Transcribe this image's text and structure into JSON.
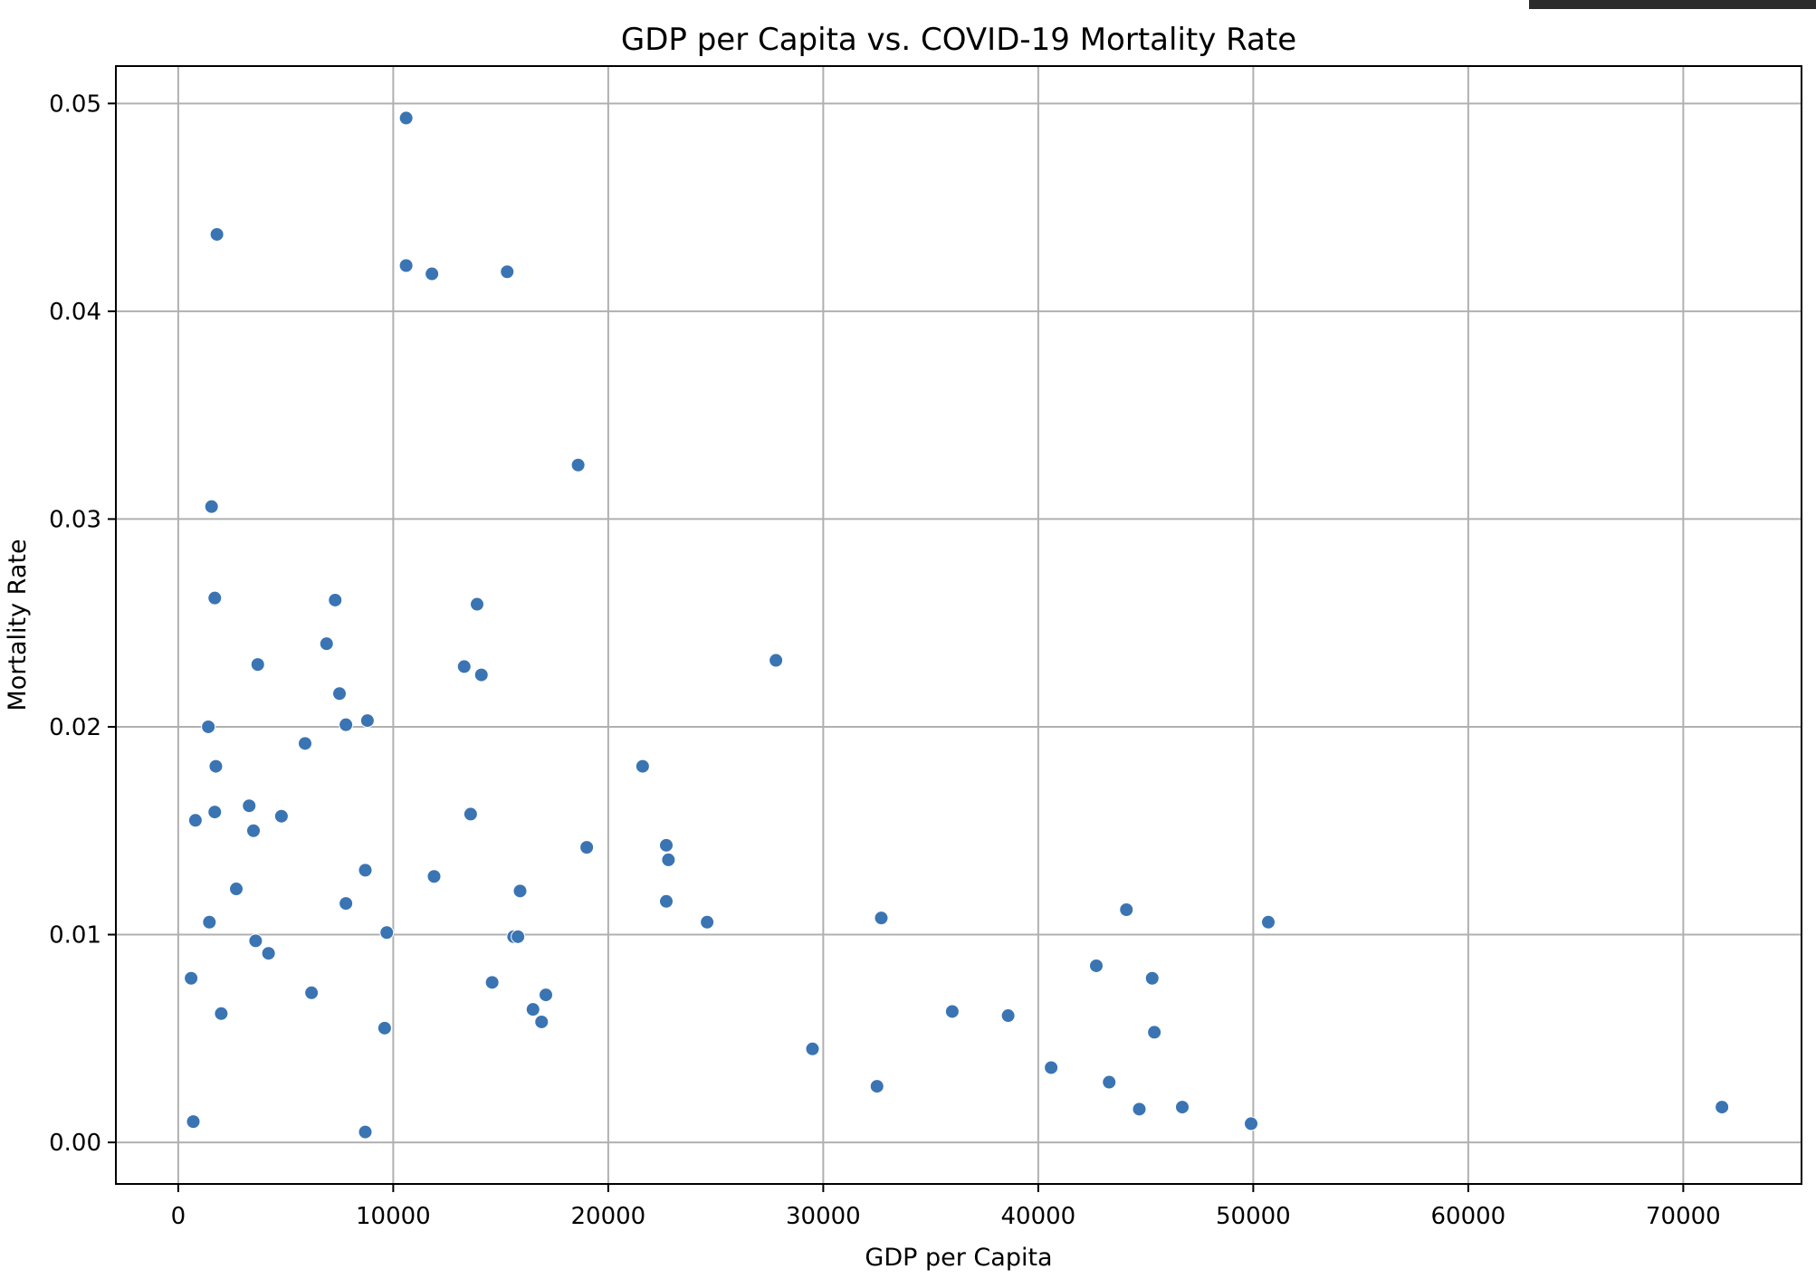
{
  "chart_data": {
    "type": "scatter",
    "title": "GDP per Capita vs. COVID-19 Mortality Rate",
    "xlabel": "GDP per Capita",
    "ylabel": "Mortality Rate",
    "xlim": [
      -2900,
      75500
    ],
    "ylim": [
      -0.002,
      0.0518
    ],
    "xticks": [
      0,
      10000,
      20000,
      30000,
      40000,
      50000,
      60000,
      70000
    ],
    "xtick_labels": [
      "0",
      "10000",
      "20000",
      "30000",
      "40000",
      "50000",
      "60000",
      "70000"
    ],
    "yticks": [
      0.0,
      0.01,
      0.02,
      0.03,
      0.04,
      0.05
    ],
    "ytick_labels": [
      "0.00",
      "0.01",
      "0.02",
      "0.03",
      "0.04",
      "0.05"
    ],
    "grid": true,
    "marker_color": "#3a74b3",
    "points": [
      [
        10600,
        0.0493
      ],
      [
        1800,
        0.0437
      ],
      [
        10600,
        0.0422
      ],
      [
        11800,
        0.0418
      ],
      [
        15300,
        0.0419
      ],
      [
        18600,
        0.0326
      ],
      [
        1550,
        0.0306
      ],
      [
        1700,
        0.0262
      ],
      [
        7300,
        0.0261
      ],
      [
        13900,
        0.0259
      ],
      [
        6900,
        0.024
      ],
      [
        27800,
        0.0232
      ],
      [
        3700,
        0.023
      ],
      [
        13300,
        0.0229
      ],
      [
        14100,
        0.0225
      ],
      [
        7500,
        0.0216
      ],
      [
        1400,
        0.02
      ],
      [
        7800,
        0.0201
      ],
      [
        8800,
        0.0203
      ],
      [
        5900,
        0.0192
      ],
      [
        1750,
        0.0181
      ],
      [
        21600,
        0.0181
      ],
      [
        3300,
        0.0162
      ],
      [
        1700,
        0.0159
      ],
      [
        4800,
        0.0157
      ],
      [
        800,
        0.0155
      ],
      [
        13600,
        0.0158
      ],
      [
        3500,
        0.015
      ],
      [
        22700,
        0.0143
      ],
      [
        19000,
        0.0142
      ],
      [
        22800,
        0.0136
      ],
      [
        8700,
        0.0131
      ],
      [
        11900,
        0.0128
      ],
      [
        2700,
        0.0122
      ],
      [
        15900,
        0.0121
      ],
      [
        7800,
        0.0115
      ],
      [
        22700,
        0.0116
      ],
      [
        44100,
        0.0112
      ],
      [
        32700,
        0.0108
      ],
      [
        1450,
        0.0106
      ],
      [
        24600,
        0.0106
      ],
      [
        50700,
        0.0106
      ],
      [
        9700,
        0.0101
      ],
      [
        15600,
        0.0099
      ],
      [
        15800,
        0.0099
      ],
      [
        3600,
        0.0097
      ],
      [
        4200,
        0.0091
      ],
      [
        42700,
        0.0085
      ],
      [
        600,
        0.0079
      ],
      [
        45300,
        0.0079
      ],
      [
        14600,
        0.0077
      ],
      [
        6200,
        0.0072
      ],
      [
        17100,
        0.0071
      ],
      [
        16500,
        0.0064
      ],
      [
        36000,
        0.0063
      ],
      [
        2000,
        0.0062
      ],
      [
        38600,
        0.0061
      ],
      [
        16900,
        0.0058
      ],
      [
        9600,
        0.0055
      ],
      [
        45400,
        0.0053
      ],
      [
        29500,
        0.0045
      ],
      [
        40600,
        0.0036
      ],
      [
        43300,
        0.0029
      ],
      [
        32500,
        0.0027
      ],
      [
        71800,
        0.0017
      ],
      [
        46700,
        0.0017
      ],
      [
        44700,
        0.0016
      ],
      [
        700,
        0.001
      ],
      [
        49900,
        0.0009
      ],
      [
        8700,
        0.0005
      ]
    ]
  }
}
